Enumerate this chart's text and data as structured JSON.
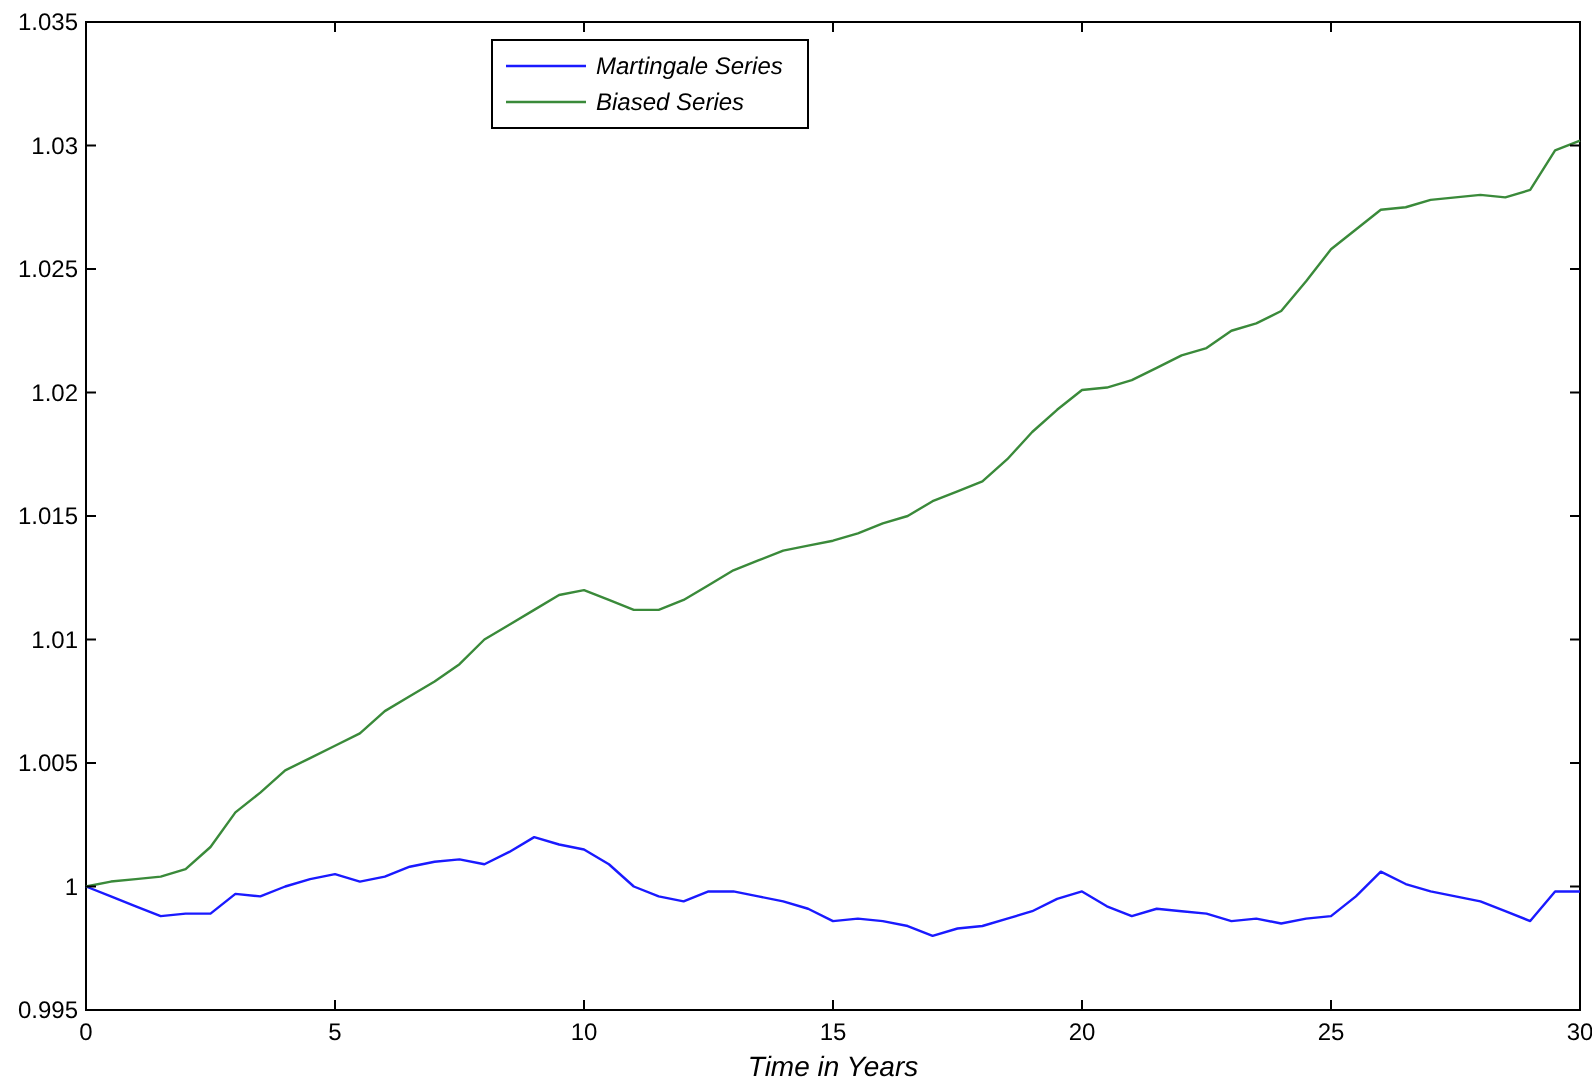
{
  "chart_data": {
    "type": "line",
    "xlabel": "Time in Years",
    "xlim": [
      0,
      30
    ],
    "xticks": [
      0,
      5,
      10,
      15,
      20,
      25,
      30
    ],
    "ylim": [
      0.995,
      1.035
    ],
    "yticks": [
      {
        "value": 0.995,
        "label": "0.995"
      },
      1,
      1.005,
      1.01,
      1.015,
      1.02,
      1.025,
      1.03,
      1.035
    ],
    "legend": "top left",
    "grid": false,
    "x": [
      0,
      0.5,
      1,
      1.5,
      2,
      2.5,
      3,
      3.5,
      4,
      4.5,
      5,
      5.5,
      6,
      6.5,
      7,
      7.5,
      8,
      8.5,
      9,
      9.5,
      10,
      10.5,
      11,
      11.5,
      12,
      12.5,
      13,
      13.5,
      14,
      14.5,
      15,
      15.5,
      16,
      16.5,
      17,
      17.5,
      18,
      18.5,
      19,
      19.5,
      20,
      20.5,
      21,
      21.5,
      22,
      22.5,
      23,
      23.5,
      24,
      24.5,
      25,
      25.5,
      26,
      26.5,
      27,
      27.5,
      28,
      28.5,
      29,
      29.5,
      30
    ],
    "series": [
      {
        "name": "Martingale Series",
        "color": "#1a1aff",
        "values": [
          1.0,
          0.9996,
          0.9992,
          0.9988,
          0.9989,
          0.9989,
          0.9997,
          0.9996,
          1.0,
          1.0003,
          1.0005,
          1.0002,
          1.0004,
          1.0008,
          1.001,
          1.0011,
          1.0009,
          1.0014,
          1.002,
          1.0017,
          1.0015,
          1.0009,
          1.0,
          0.9996,
          0.9994,
          0.9998,
          0.9998,
          0.9996,
          0.9994,
          0.9991,
          0.9986,
          0.9987,
          0.9986,
          0.9984,
          0.998,
          0.9983,
          0.9984,
          0.9987,
          0.999,
          0.9995,
          0.9998,
          0.9992,
          0.9988,
          0.9991,
          0.999,
          0.9989,
          0.9986,
          0.9987,
          0.9985,
          0.9987,
          0.9988,
          0.9996,
          1.0006,
          1.0001,
          0.9998,
          0.9996,
          0.9994,
          0.999,
          0.9986,
          0.9998,
          0.9998
        ]
      },
      {
        "name": "Biased Series",
        "color": "#3a8a3a",
        "values": [
          1.0,
          1.0002,
          1.0003,
          1.0004,
          1.0007,
          1.0016,
          1.003,
          1.0038,
          1.0047,
          1.0052,
          1.0057,
          1.0062,
          1.0071,
          1.0077,
          1.0083,
          1.009,
          1.01,
          1.0106,
          1.0112,
          1.0118,
          1.012,
          1.0116,
          1.0112,
          1.0112,
          1.0116,
          1.0122,
          1.0128,
          1.0132,
          1.0136,
          1.0138,
          1.014,
          1.0143,
          1.0147,
          1.015,
          1.0156,
          1.016,
          1.0164,
          1.0173,
          1.0184,
          1.0193,
          1.0201,
          1.0202,
          1.0205,
          1.021,
          1.0215,
          1.0218,
          1.0225,
          1.0228,
          1.0233,
          1.0245,
          1.0258,
          1.0266,
          1.0274,
          1.0275,
          1.0278,
          1.0279,
          1.028,
          1.0279,
          1.0282,
          1.0298,
          1.0302
        ]
      }
    ]
  }
}
